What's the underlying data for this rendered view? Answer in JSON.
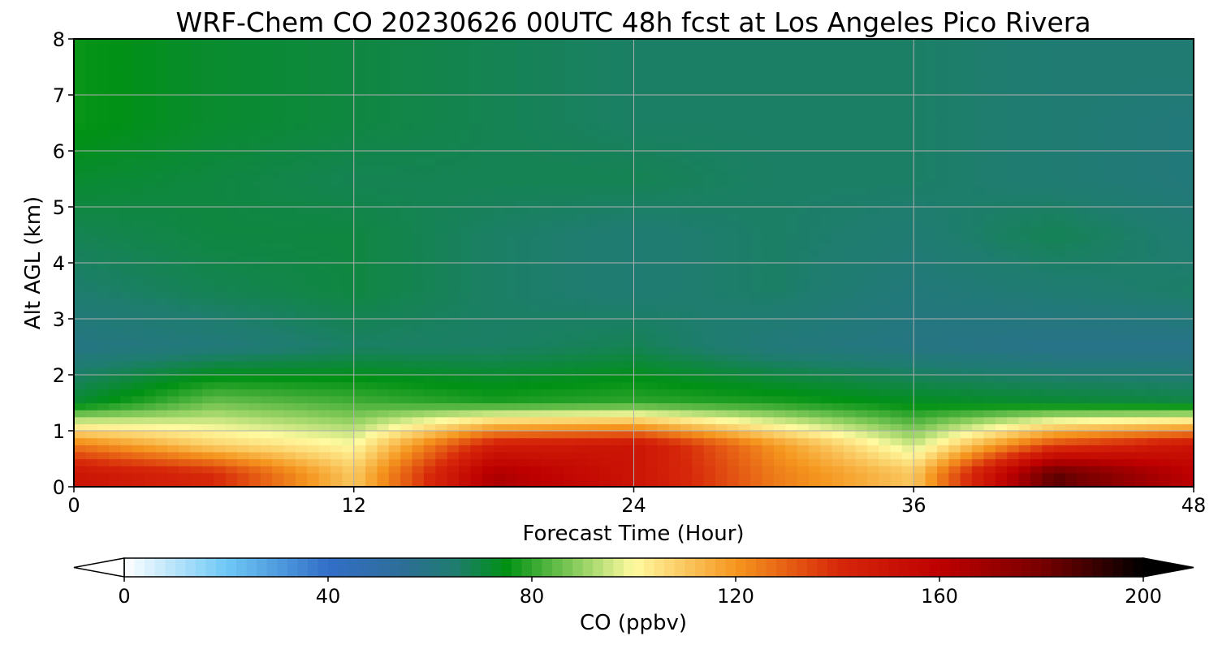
{
  "chart_data": {
    "type": "heatmap",
    "title": "WRF-Chem CO  20230626 00UTC 48h fcst at Los Angeles Pico Rivera",
    "xlabel": "Forecast Time (Hour)",
    "ylabel": "Alt AGL (km)",
    "xlim": [
      0,
      48
    ],
    "ylim": [
      0,
      8
    ],
    "xticks": [
      "0",
      "12",
      "24",
      "36",
      "48"
    ],
    "yticks": [
      "0",
      "1",
      "2",
      "3",
      "4",
      "5",
      "6",
      "7",
      "8"
    ],
    "grid": true,
    "x": [
      0,
      6,
      12,
      18,
      24,
      30,
      36,
      42,
      48
    ],
    "y": [
      0.25,
      0.75,
      1.5,
      2.5,
      3.5,
      4.5,
      5.5,
      6.5,
      7.5
    ],
    "z": [
      [
        150,
        140,
        110,
        165,
        150,
        125,
        110,
        185,
        160
      ],
      [
        125,
        108,
        100,
        145,
        150,
        120,
        95,
        135,
        150
      ],
      [
        72,
        86,
        82,
        78,
        80,
        78,
        74,
        72,
        70
      ],
      [
        60,
        62,
        66,
        66,
        68,
        62,
        60,
        58,
        58
      ],
      [
        65,
        68,
        70,
        66,
        64,
        66,
        62,
        64,
        66
      ],
      [
        68,
        70,
        70,
        66,
        64,
        66,
        64,
        68,
        64
      ],
      [
        72,
        70,
        68,
        68,
        68,
        66,
        66,
        64,
        62
      ],
      [
        76,
        72,
        70,
        68,
        66,
        66,
        66,
        64,
        62
      ],
      [
        76,
        72,
        70,
        68,
        66,
        66,
        66,
        64,
        64
      ]
    ],
    "colorbar": {
      "label": "CO  (ppbv)",
      "ticks": [
        "0",
        "40",
        "80",
        "120",
        "160",
        "200"
      ],
      "min": 0,
      "max": 200,
      "extend": "both"
    }
  }
}
